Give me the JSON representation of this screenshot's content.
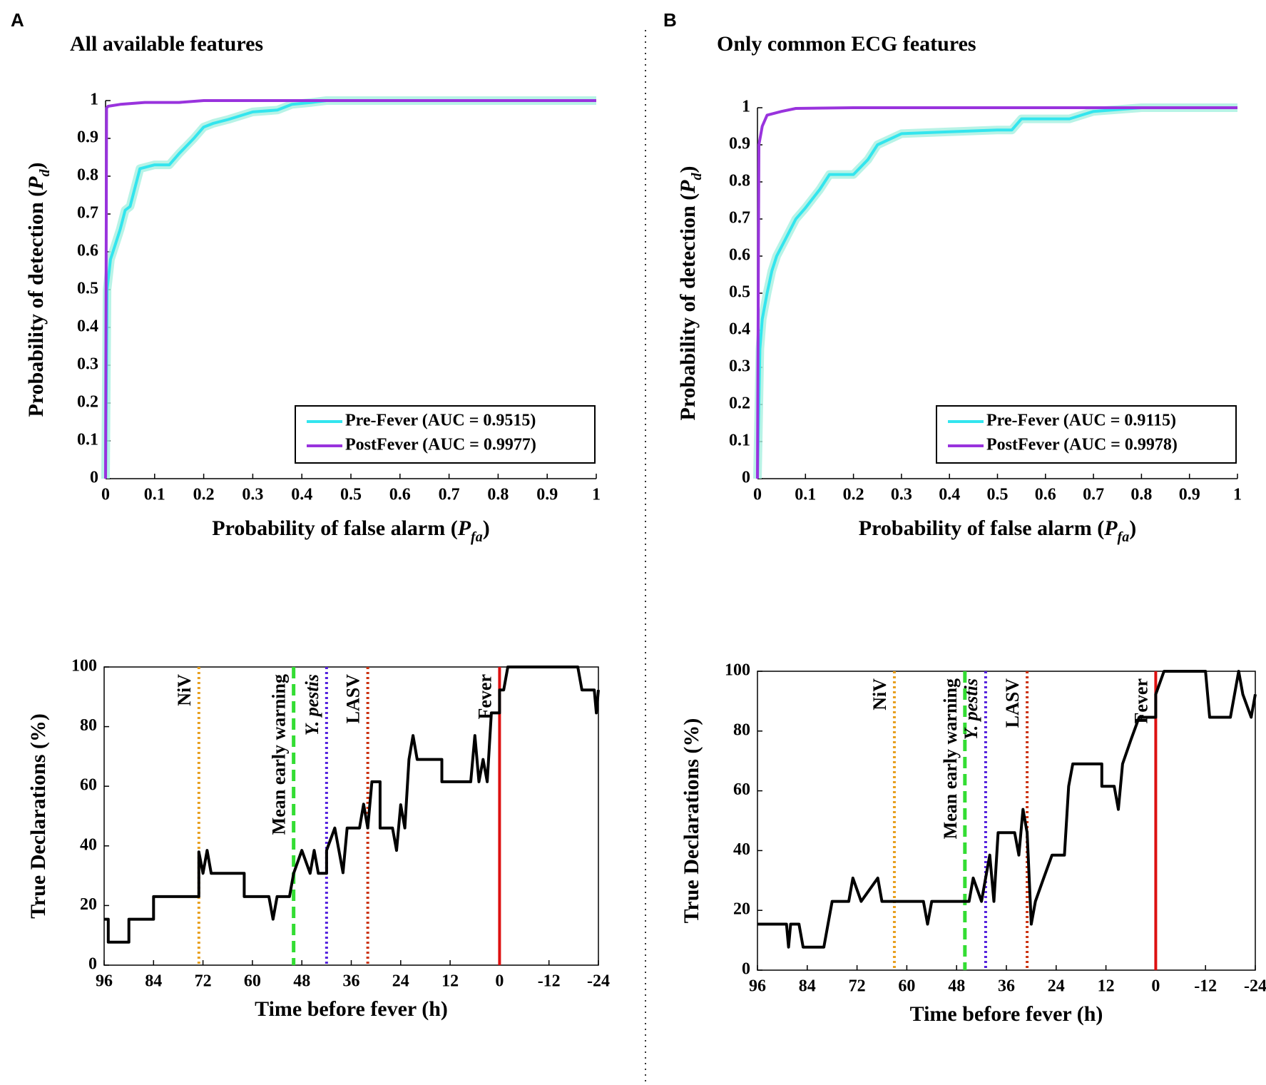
{
  "chart_data": [
    {
      "type": "line",
      "panel": "A",
      "title": "All available features",
      "xlabel": [
        "Probability of false alarm (",
        "P",
        "fa",
        ")"
      ],
      "ylabel": [
        "Probability of detection (",
        "P",
        "d",
        ")"
      ],
      "xlim": [
        0,
        1
      ],
      "ylim": [
        0,
        1
      ],
      "xticks": [
        0,
        0.1,
        0.2,
        0.3,
        0.4,
        0.5,
        0.6,
        0.7,
        0.8,
        0.9,
        1
      ],
      "yticks": [
        0,
        0.1,
        0.2,
        0.3,
        0.4,
        0.5,
        0.6,
        0.7,
        0.8,
        0.9,
        1
      ],
      "legend": "lower right",
      "box": false,
      "series": [
        {
          "name": "Pre-Fever (AUC = 0.9515)",
          "color": "#33e5ee",
          "band_color": "#a6f0e0",
          "x": [
            0,
            0.003,
            0.01,
            0.02,
            0.03,
            0.04,
            0.05,
            0.06,
            0.07,
            0.1,
            0.13,
            0.15,
            0.18,
            0.2,
            0.22,
            0.25,
            0.3,
            0.35,
            0.38,
            0.42,
            0.45,
            1
          ],
          "values": [
            0,
            0.5,
            0.58,
            0.62,
            0.66,
            0.71,
            0.72,
            0.77,
            0.82,
            0.83,
            0.83,
            0.86,
            0.9,
            0.93,
            0.94,
            0.95,
            0.97,
            0.975,
            0.99,
            0.995,
            1,
            1
          ]
        },
        {
          "name": "PostFever (AUC = 0.9977)",
          "color": "#9933dd",
          "x": [
            0,
            0.002,
            0.005,
            0.03,
            0.08,
            0.15,
            0.2,
            1
          ],
          "values": [
            0,
            0.98,
            0.985,
            0.99,
            0.995,
            0.995,
            1,
            1
          ]
        }
      ]
    },
    {
      "type": "line",
      "panel": "B",
      "title": "Only common ECG features",
      "xlabel": [
        "Probability of false alarm (",
        "P",
        "fa",
        ")"
      ],
      "ylabel": [
        "Probability of detection (",
        "P",
        "d",
        ")"
      ],
      "xlim": [
        0,
        1
      ],
      "ylim": [
        0,
        1
      ],
      "xticks": [
        0,
        0.1,
        0.2,
        0.3,
        0.4,
        0.5,
        0.6,
        0.7,
        0.8,
        0.9,
        1
      ],
      "yticks": [
        0,
        0.1,
        0.2,
        0.3,
        0.4,
        0.5,
        0.6,
        0.7,
        0.8,
        0.9,
        1
      ],
      "legend": "lower right",
      "box": false,
      "series": [
        {
          "name": "Pre-Fever (AUC = 0.9115)",
          "color": "#33e5ee",
          "band_color": "#a6f0e0",
          "x": [
            0,
            0.005,
            0.01,
            0.02,
            0.03,
            0.04,
            0.06,
            0.08,
            0.1,
            0.13,
            0.15,
            0.2,
            0.23,
            0.25,
            0.3,
            0.4,
            0.5,
            0.53,
            0.55,
            0.65,
            0.7,
            0.8,
            1
          ],
          "values": [
            0,
            0.35,
            0.43,
            0.5,
            0.56,
            0.6,
            0.65,
            0.7,
            0.73,
            0.78,
            0.82,
            0.82,
            0.86,
            0.9,
            0.93,
            0.935,
            0.94,
            0.94,
            0.97,
            0.97,
            0.99,
            1,
            1
          ]
        },
        {
          "name": "PostFever (AUC = 0.9978)",
          "color": "#9933dd",
          "x": [
            0,
            0.003,
            0.01,
            0.02,
            0.05,
            0.08,
            0.2,
            1
          ],
          "values": [
            0,
            0.9,
            0.95,
            0.98,
            0.99,
            0.998,
            1,
            1
          ]
        }
      ]
    },
    {
      "type": "line",
      "xlabel": "Time before fever (h)",
      "ylabel": "True Declarations (%)",
      "xlim": [
        96,
        -24
      ],
      "ylim": [
        0,
        100
      ],
      "xticks": [
        96,
        84,
        72,
        60,
        48,
        36,
        24,
        12,
        0,
        -12,
        -24
      ],
      "yticks": [
        0,
        20,
        40,
        60,
        80,
        100
      ],
      "box": true,
      "series": [
        {
          "color": "#000000",
          "x": [
            96,
            95,
            95,
            90,
            90,
            84,
            84,
            73,
            73,
            72,
            71,
            70,
            62,
            62,
            56,
            55,
            54,
            51,
            50,
            48,
            46,
            45,
            44,
            42,
            42,
            40,
            38,
            37,
            34,
            33,
            32,
            31,
            29,
            29,
            26,
            25,
            24,
            23,
            22,
            21,
            20,
            14,
            14,
            7,
            6,
            5,
            4,
            3,
            2,
            0,
            0,
            -1,
            -2,
            -19,
            -20,
            -23,
            -23.5,
            -24
          ],
          "values": [
            15.4,
            15.4,
            7.7,
            7.7,
            15.4,
            15.4,
            23,
            23,
            38,
            30.8,
            38.5,
            30.8,
            30.8,
            23,
            23,
            15.4,
            23,
            23,
            30.8,
            38.5,
            30.8,
            38.5,
            30.8,
            30.8,
            38.5,
            46,
            31,
            46,
            46,
            54,
            46,
            61.5,
            61.5,
            46,
            46,
            38.5,
            53.8,
            46,
            69,
            77,
            69,
            69,
            61.5,
            61.5,
            77,
            61.5,
            69,
            61.5,
            84.6,
            84.6,
            92.3,
            92.3,
            100,
            100,
            92.3,
            92.3,
            84.6,
            92.3
          ]
        }
      ],
      "vlines": [
        {
          "label": "NiV",
          "x": 73,
          "color": "#e8a020",
          "style": "dotted"
        },
        {
          "label": "Mean early warning",
          "x": 50,
          "color": "#33dd33",
          "style": "dashed"
        },
        {
          "label": "Y. pestis",
          "x": 42,
          "color": "#5522dd",
          "style": "dotted",
          "italic": true
        },
        {
          "label": "LASV",
          "x": 32,
          "color": "#cc3311",
          "style": "dotted"
        },
        {
          "label": "Fever",
          "x": 0,
          "color": "#dd1111",
          "style": "solid"
        }
      ]
    },
    {
      "type": "line",
      "xlabel": "Time before fever (h)",
      "ylabel": "True Declarations (%)",
      "xlim": [
        96,
        -24
      ],
      "ylim": [
        0,
        100
      ],
      "xticks": [
        96,
        84,
        72,
        60,
        48,
        36,
        24,
        12,
        0,
        -12,
        -24
      ],
      "yticks": [
        0,
        20,
        40,
        60,
        80,
        100
      ],
      "box": true,
      "series": [
        {
          "color": "#000000",
          "x": [
            96,
            89,
            88.5,
            88,
            86,
            85,
            80,
            79,
            78,
            74,
            73,
            71,
            67,
            66,
            56,
            55,
            54,
            45,
            44,
            42,
            41,
            40,
            39,
            38,
            34,
            33,
            32,
            31,
            30,
            29,
            27,
            25,
            22,
            21,
            20,
            13,
            13,
            10,
            9,
            8,
            6,
            4,
            0,
            0,
            -2,
            -12,
            -13,
            -18,
            -19,
            -20,
            -21,
            -23,
            -24
          ],
          "values": [
            15.4,
            15.4,
            7.7,
            15.4,
            15.4,
            7.7,
            7.7,
            15.4,
            23,
            23,
            30.8,
            23,
            30.8,
            23,
            23,
            15.4,
            23,
            23,
            30.8,
            23,
            30.8,
            38.5,
            23,
            46,
            46,
            38.5,
            53.8,
            46,
            15.4,
            23,
            30.8,
            38.5,
            38.5,
            61.5,
            69,
            69,
            61.5,
            61.5,
            53.8,
            69,
            77,
            84.6,
            84.6,
            92.3,
            100,
            100,
            84.6,
            84.6,
            92.3,
            100,
            92.3,
            84.6,
            92.3
          ]
        }
      ],
      "vlines": [
        {
          "label": "NiV",
          "x": 63,
          "color": "#e8a020",
          "style": "dotted"
        },
        {
          "label": "Mean early warning",
          "x": 46,
          "color": "#33dd33",
          "style": "dashed"
        },
        {
          "label": "Y. pestis",
          "x": 41,
          "color": "#5522dd",
          "style": "dotted",
          "italic": true
        },
        {
          "label": "LASV",
          "x": 31,
          "color": "#cc3311",
          "style": "dotted"
        },
        {
          "label": "Fever",
          "x": 0,
          "color": "#dd1111",
          "style": "solid"
        }
      ]
    }
  ]
}
